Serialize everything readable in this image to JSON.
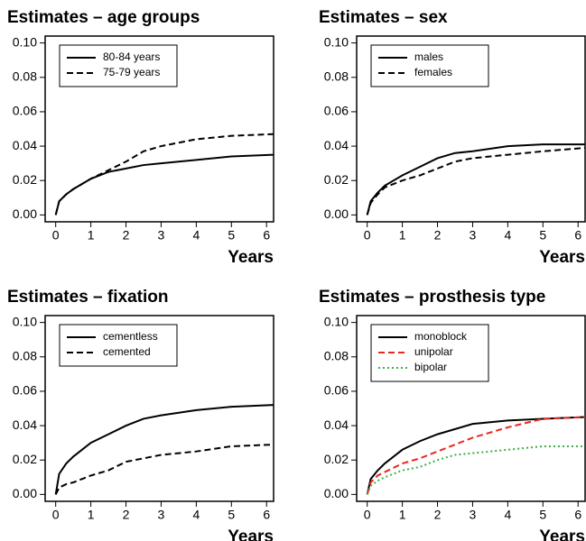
{
  "chart_data": [
    {
      "type": "line",
      "title": "Estimates – age groups",
      "xlabel": "Years",
      "x": [
        0,
        0.1,
        0.3,
        0.5,
        1,
        1.5,
        2,
        2.5,
        3,
        4,
        5,
        6.2
      ],
      "series": [
        {
          "name": "80-84 years",
          "color": "#000000",
          "linestyle": "solid",
          "values": [
            0,
            0.008,
            0.012,
            0.015,
            0.021,
            0.025,
            0.027,
            0.029,
            0.03,
            0.032,
            0.034,
            0.035
          ]
        },
        {
          "name": "75-79 years",
          "color": "#000000",
          "linestyle": "dashed",
          "values": [
            0,
            0.008,
            0.012,
            0.015,
            0.021,
            0.026,
            0.031,
            0.037,
            0.04,
            0.044,
            0.046,
            0.047
          ]
        }
      ],
      "xlim": [
        -0.3,
        6.2
      ],
      "xticks": [
        0,
        1,
        2,
        3,
        4,
        5,
        6
      ],
      "ylim": [
        -0.004,
        0.104
      ],
      "yticks": [
        {
          "value": 0,
          "label": "0.00"
        },
        {
          "value": 0.02,
          "label": "0.02"
        },
        {
          "value": 0.04,
          "label": "0.04"
        },
        {
          "value": 0.06,
          "label": "0.06"
        },
        {
          "value": 0.08,
          "label": "0.08"
        },
        {
          "value": 0.1,
          "label": "0.10"
        }
      ],
      "legend": "top-left"
    },
    {
      "type": "line",
      "title": "Estimates – sex",
      "xlabel": "Years",
      "x": [
        0,
        0.1,
        0.3,
        0.5,
        1,
        1.5,
        2,
        2.5,
        3,
        4,
        5,
        6.2
      ],
      "series": [
        {
          "name": "males",
          "color": "#000000",
          "linestyle": "solid",
          "values": [
            0,
            0.008,
            0.013,
            0.017,
            0.023,
            0.028,
            0.033,
            0.036,
            0.037,
            0.04,
            0.041,
            0.041
          ]
        },
        {
          "name": "females",
          "color": "#000000",
          "linestyle": "dashed",
          "values": [
            0,
            0.007,
            0.012,
            0.016,
            0.02,
            0.023,
            0.027,
            0.031,
            0.033,
            0.035,
            0.037,
            0.039
          ]
        }
      ],
      "xlim": [
        -0.3,
        6.2
      ],
      "xticks": [
        0,
        1,
        2,
        3,
        4,
        5,
        6
      ],
      "ylim": [
        -0.004,
        0.104
      ],
      "yticks": [
        {
          "value": 0,
          "label": "0.00"
        },
        {
          "value": 0.02,
          "label": "0.02"
        },
        {
          "value": 0.04,
          "label": "0.04"
        },
        {
          "value": 0.06,
          "label": "0.06"
        },
        {
          "value": 0.08,
          "label": "0.08"
        },
        {
          "value": 0.1,
          "label": "0.10"
        }
      ],
      "legend": "top-left"
    },
    {
      "type": "line",
      "title": "Estimates – fixation",
      "xlabel": "Years",
      "x": [
        0,
        0.1,
        0.3,
        0.5,
        1,
        1.5,
        2,
        2.5,
        3,
        4,
        5,
        6.2
      ],
      "series": [
        {
          "name": "cementless",
          "color": "#000000",
          "linestyle": "solid",
          "values": [
            0,
            0.012,
            0.018,
            0.022,
            0.03,
            0.035,
            0.04,
            0.044,
            0.046,
            0.049,
            0.051,
            0.052
          ]
        },
        {
          "name": "cemented",
          "color": "#000000",
          "linestyle": "dashed",
          "values": [
            0,
            0.004,
            0.006,
            0.007,
            0.011,
            0.014,
            0.019,
            0.021,
            0.023,
            0.025,
            0.028,
            0.029
          ]
        }
      ],
      "xlim": [
        -0.3,
        6.2
      ],
      "xticks": [
        0,
        1,
        2,
        3,
        4,
        5,
        6
      ],
      "ylim": [
        -0.004,
        0.104
      ],
      "yticks": [
        {
          "value": 0,
          "label": "0.00"
        },
        {
          "value": 0.02,
          "label": "0.02"
        },
        {
          "value": 0.04,
          "label": "0.04"
        },
        {
          "value": 0.06,
          "label": "0.06"
        },
        {
          "value": 0.08,
          "label": "0.08"
        },
        {
          "value": 0.1,
          "label": "0.10"
        }
      ],
      "legend": "top-left"
    },
    {
      "type": "line",
      "title": "Estimates – prosthesis type",
      "xlabel": "Years",
      "x": [
        0,
        0.1,
        0.3,
        0.5,
        1,
        1.5,
        2,
        2.5,
        3,
        4,
        5,
        6.2
      ],
      "series": [
        {
          "name": "monoblock",
          "color": "#000000",
          "linestyle": "solid",
          "values": [
            0,
            0.009,
            0.014,
            0.018,
            0.026,
            0.031,
            0.035,
            0.038,
            0.041,
            0.043,
            0.044,
            0.045
          ]
        },
        {
          "name": "unipolar",
          "color": "#e8281f",
          "linestyle": "dashed",
          "values": [
            0,
            0.007,
            0.011,
            0.013,
            0.018,
            0.021,
            0.025,
            0.029,
            0.033,
            0.039,
            0.044,
            0.045
          ]
        },
        {
          "name": "bipolar",
          "color": "#3cb043",
          "linestyle": "dotted",
          "values": [
            0,
            0.005,
            0.008,
            0.01,
            0.014,
            0.016,
            0.02,
            0.023,
            0.024,
            0.026,
            0.028,
            0.028
          ]
        }
      ],
      "xlim": [
        -0.3,
        6.2
      ],
      "xticks": [
        0,
        1,
        2,
        3,
        4,
        5,
        6
      ],
      "ylim": [
        -0.004,
        0.104
      ],
      "yticks": [
        {
          "value": 0,
          "label": "0.00"
        },
        {
          "value": 0.02,
          "label": "0.02"
        },
        {
          "value": 0.04,
          "label": "0.04"
        },
        {
          "value": 0.06,
          "label": "0.06"
        },
        {
          "value": 0.08,
          "label": "0.08"
        },
        {
          "value": 0.1,
          "label": "0.10"
        }
      ],
      "legend": "top-left"
    }
  ]
}
